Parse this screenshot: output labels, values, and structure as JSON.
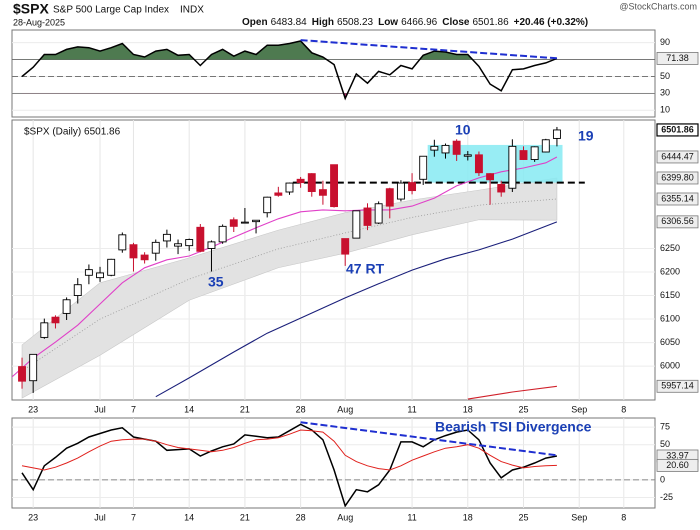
{
  "header": {
    "symbol": "$SPX",
    "name": "S&P 500 Large Cap Index",
    "exchange": "INDX",
    "date": "28-Aug-2025",
    "quote": [
      {
        "label": "Open",
        "value": 6483.84
      },
      {
        "label": "High",
        "value": 6508.23
      },
      {
        "label": "Low",
        "value": 6466.96
      },
      {
        "label": "Close",
        "value": 6501.86
      }
    ],
    "change": "+20.46 (+0.32%)",
    "watermark": "@StockCharts.com"
  },
  "chart_data": [
    {
      "type": "line",
      "xlim": [
        -0.9,
        56.8
      ],
      "ylim": [
        2,
        105
      ],
      "yticks": [
        10,
        30,
        50,
        90
      ],
      "levels": [
        {
          "value": 70,
          "style": "solid"
        },
        {
          "value": 50,
          "style": "dashed"
        },
        {
          "value": 30,
          "style": "solid"
        }
      ],
      "fill_above": {
        "value": 70,
        "color": "#4e7a50"
      },
      "fill_below": {
        "value": 30,
        "color": "#b0306a"
      },
      "series": [
        {
          "color": "#000000",
          "values": [
            50,
            61,
            76,
            76,
            82,
            85,
            84,
            80,
            84,
            89,
            76,
            73,
            80,
            82,
            75,
            76,
            63,
            76,
            82,
            74,
            80,
            76,
            87,
            87,
            89,
            92,
            78,
            73,
            64,
            24,
            53,
            42,
            56,
            52,
            63,
            59,
            75,
            80,
            79,
            76,
            76,
            62,
            41,
            33,
            58,
            59,
            63,
            66,
            71.38
          ]
        }
      ],
      "trendlines": [
        {
          "color": "#1f2fd0",
          "x": [
            25,
            48
          ],
          "values": [
            93,
            71.5
          ]
        }
      ],
      "last_labels": [
        71.38
      ]
    },
    {
      "type": "candlestick",
      "legend": "$SPX (Daily) 6501.86",
      "xlim": [
        -0.9,
        56.8
      ],
      "ylim": [
        5928,
        6523
      ],
      "yticks": [
        6000,
        6050,
        6100,
        6150,
        6200,
        6250
      ],
      "xticks": [
        {
          "value": 1,
          "label": "23"
        },
        {
          "value": 7,
          "label": "Jul"
        },
        {
          "value": 10,
          "label": "7"
        },
        {
          "value": 15,
          "label": "14"
        },
        {
          "value": 20,
          "label": "21"
        },
        {
          "value": 25,
          "label": "28"
        },
        {
          "value": 29,
          "label": "Aug"
        },
        {
          "value": 35,
          "label": "11"
        },
        {
          "value": 40,
          "label": "18"
        },
        {
          "value": 45,
          "label": "25"
        },
        {
          "value": 50,
          "label": "Sep"
        },
        {
          "value": 54,
          "label": "8"
        }
      ],
      "up_color": "#000000",
      "down_color": "#c8102e",
      "open": [
        5999,
        5969,
        6061,
        6104,
        6112,
        6150,
        6193,
        6188,
        6193,
        6247,
        6258,
        6236,
        6240,
        6266,
        6255,
        6256,
        6295,
        6250,
        6264,
        6311,
        6304,
        6307,
        6326,
        6368,
        6370,
        6397,
        6409,
        6375,
        6428,
        6271,
        6272,
        6336,
        6304,
        6377,
        6355,
        6390,
        6397,
        6459,
        6453,
        6478,
        6446,
        6449,
        6409,
        6386,
        6378,
        6458,
        6439,
        6455,
        6483.84
      ],
      "high": [
        6018,
        6025,
        6101,
        6108,
        6146,
        6187,
        6216,
        6211,
        6228,
        6284,
        6262,
        6242,
        6269,
        6290,
        6269,
        6271,
        6302,
        6267,
        6301,
        6316,
        6336,
        6310,
        6360,
        6381,
        6390,
        6402,
        6410,
        6394,
        6428,
        6271,
        6330,
        6346,
        6350,
        6379,
        6395,
        6410,
        6446,
        6481,
        6473,
        6482,
        6457,
        6456,
        6410,
        6394,
        6482,
        6467,
        6467,
        6483,
        6508.23
      ],
      "low": [
        5952,
        5943,
        6058,
        6080,
        6098,
        6133,
        6174,
        6179,
        6191,
        6241,
        6201,
        6218,
        6224,
        6252,
        6238,
        6245,
        6242,
        6201,
        6260,
        6285,
        6304,
        6282,
        6316,
        6360,
        6364,
        6379,
        6360,
        6343,
        6337,
        6213,
        6272,
        6289,
        6302,
        6314,
        6350,
        6365,
        6385,
        6445,
        6441,
        6436,
        6437,
        6404,
        6343,
        6360,
        6370,
        6438,
        6434,
        6454,
        6466.96
      ],
      "close": [
        5968,
        6025,
        6092,
        6092,
        6141,
        6173,
        6205,
        6198,
        6227,
        6279,
        6230,
        6226,
        6263,
        6280,
        6260,
        6269,
        6244,
        6264,
        6297,
        6297,
        6306,
        6310,
        6359,
        6363,
        6389,
        6390,
        6371,
        6363,
        6339,
        6238,
        6330,
        6299,
        6345,
        6340,
        6389,
        6373,
        6446,
        6467,
        6469,
        6450,
        6449,
        6411,
        6396,
        6370,
        6467,
        6439,
        6466,
        6481,
        6501.86
      ],
      "band": {
        "color": "#e2e2e2",
        "x": [
          0,
          7,
          15,
          23,
          29,
          35,
          41,
          48
        ],
        "upper": [
          6045,
          6177,
          6230,
          6289,
          6326,
          6353,
          6374,
          6399.8
        ],
        "lower": [
          5932,
          6023,
          6140,
          6209,
          6240,
          6279,
          6311,
          6310
        ],
        "middle": [
          5990,
          6100,
          6185,
          6249,
          6283,
          6316,
          6342,
          6355.14
        ]
      },
      "overlays": [
        {
          "color": "#e040c8",
          "x": [
            -1,
            1,
            3,
            5,
            7,
            9,
            11,
            13,
            15,
            17,
            19,
            21,
            23,
            25,
            27,
            29,
            31,
            33,
            35,
            37,
            39,
            41,
            43,
            45,
            47,
            48
          ],
          "values": [
            5975,
            6017,
            6051,
            6087,
            6132,
            6177,
            6209,
            6226,
            6234,
            6253,
            6274,
            6294,
            6313,
            6328,
            6332,
            6330,
            6332,
            6332,
            6340,
            6357,
            6383,
            6400,
            6413,
            6421,
            6432,
            6444.47
          ]
        },
        {
          "color": "#1a1f7a",
          "x": [
            12,
            15,
            19,
            22,
            25,
            29,
            32,
            35,
            38,
            41,
            44,
            48
          ],
          "values": [
            5935,
            5975,
            6030,
            6070,
            6102,
            6145,
            6175,
            6204,
            6228,
            6247,
            6270,
            6306.56
          ]
        },
        {
          "color": "#d0202a",
          "x": [
            40,
            44,
            48
          ],
          "values": [
            5930,
            5945,
            5957.14
          ]
        }
      ],
      "highlight": {
        "color": "#86eaf2",
        "x": [
          36.4,
          48.5
        ],
        "y": [
          6390,
          6470
        ]
      },
      "hline": {
        "value": 6390,
        "x": [
          24.3,
          50.5
        ],
        "color": "#000000"
      },
      "annotations": [
        "10",
        "19",
        "35",
        "47 RT"
      ],
      "last_labels": [
        6501.86,
        6444.47,
        {
          "value": 6399.8,
          "label": "6399.80"
        },
        6355.14,
        6306.56,
        5957.14
      ]
    },
    {
      "type": "line",
      "xlim": [
        -0.9,
        56.8
      ],
      "ylim": [
        -40,
        88
      ],
      "yticks": [
        -25,
        0,
        50,
        75
      ],
      "xticks": [
        {
          "value": 1,
          "label": "23"
        },
        {
          "value": 7,
          "label": "Jul"
        },
        {
          "value": 10,
          "label": "7"
        },
        {
          "value": 15,
          "label": "14"
        },
        {
          "value": 20,
          "label": "21"
        },
        {
          "value": 25,
          "label": "28"
        },
        {
          "value": 29,
          "label": "Aug"
        },
        {
          "value": 35,
          "label": "11"
        },
        {
          "value": 40,
          "label": "18"
        },
        {
          "value": 45,
          "label": "25"
        },
        {
          "value": 50,
          "label": "Sep"
        },
        {
          "value": 54,
          "label": "8"
        }
      ],
      "levels": [
        {
          "value": 0,
          "style": "dashed"
        }
      ],
      "series": [
        {
          "color": "#000000",
          "values": [
            10,
            -14,
            20,
            32,
            45,
            52,
            61,
            66,
            71,
            74,
            61,
            58,
            55,
            42,
            43,
            44,
            34,
            41,
            47,
            51,
            64,
            62,
            60,
            61,
            70,
            79,
            71,
            57,
            14,
            -37,
            -14,
            -17,
            -7,
            14,
            54,
            54,
            47,
            57,
            63,
            68,
            71,
            57,
            24,
            3,
            14,
            18,
            24,
            31,
            33.97
          ]
        },
        {
          "color": "#e0201c",
          "values": [
            20,
            17,
            14,
            18,
            24,
            31,
            40,
            48,
            55,
            57,
            58,
            58,
            55,
            50,
            46,
            44,
            42,
            40,
            42,
            46,
            52,
            57,
            58,
            60,
            65,
            71,
            70,
            68,
            55,
            35,
            26,
            20,
            16,
            14,
            20,
            28,
            34,
            40,
            45,
            47,
            50,
            45,
            35,
            26,
            21,
            17,
            19,
            20,
            20.6
          ]
        }
      ],
      "trendlines": [
        {
          "color": "#1f2fd0",
          "x": [
            25,
            48
          ],
          "values": [
            82,
            35
          ]
        }
      ],
      "annotations": [
        "Bearish TSI Divergence"
      ],
      "last_labels": [
        33.97,
        {
          "value": 20.6,
          "label": "20.60"
        }
      ]
    }
  ]
}
